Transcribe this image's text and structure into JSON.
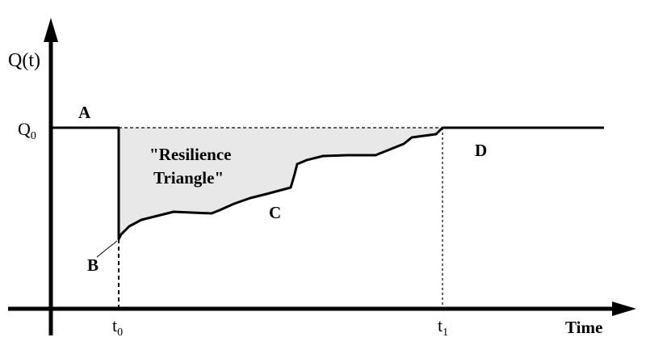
{
  "axes": {
    "y_label_main": "Q(t)",
    "x_label": "Time"
  },
  "labels": {
    "q0_main": "Q",
    "q0_sub": "0",
    "t0_main": "t",
    "t0_sub": "0",
    "t1_main": "t",
    "t1_sub": "1",
    "point_a": "A",
    "point_b": "B",
    "point_c": "C",
    "point_d": "D",
    "triangle_line1": "\"Resilience",
    "triangle_line2": "Triangle\""
  },
  "colors": {
    "line": "#000000",
    "triangle_fill": "#e8e8e8"
  }
}
